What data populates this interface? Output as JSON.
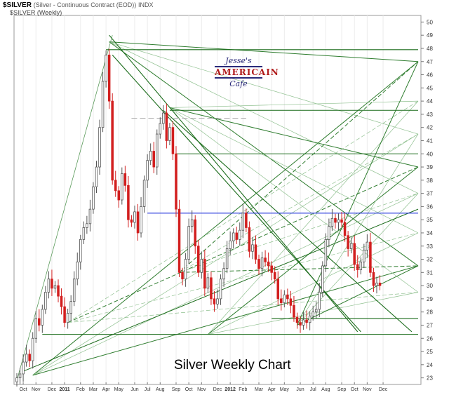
{
  "header": {
    "symbol": "$SILVER",
    "description": "(Silver - Continuous Contract (EOD))",
    "exchange": "INDX",
    "series_label": "$SILVER (Weekly)"
  },
  "logo": {
    "line1": "Jesse's",
    "line2": "AMERICAIN",
    "line3": "Cafe"
  },
  "chart_data": {
    "type": "candlestick",
    "title": "Silver Weekly Chart",
    "ylim": [
      22.5,
      50.5
    ],
    "y_ticks": [
      23,
      24,
      25,
      26,
      27,
      28,
      29,
      30,
      31,
      32,
      33,
      34,
      35,
      36,
      37,
      38,
      39,
      40,
      41,
      42,
      43,
      44,
      45,
      46,
      47,
      48,
      49,
      50
    ],
    "x_month_labels": [
      {
        "week": 2,
        "label": "Oct",
        "bold": false
      },
      {
        "week": 6,
        "label": "Nov",
        "bold": false
      },
      {
        "week": 11,
        "label": "Dec",
        "bold": false
      },
      {
        "week": 15,
        "label": "2011",
        "bold": true
      },
      {
        "week": 20,
        "label": "Feb",
        "bold": false
      },
      {
        "week": 24,
        "label": "Mar",
        "bold": false
      },
      {
        "week": 28,
        "label": "Apr",
        "bold": false
      },
      {
        "week": 32,
        "label": "May",
        "bold": false
      },
      {
        "week": 37,
        "label": "Jun",
        "bold": false
      },
      {
        "week": 41,
        "label": "Jul",
        "bold": false
      },
      {
        "week": 45,
        "label": "Aug",
        "bold": false
      },
      {
        "week": 50,
        "label": "Sep",
        "bold": false
      },
      {
        "week": 54,
        "label": "Oct",
        "bold": false
      },
      {
        "week": 58,
        "label": "Nov",
        "bold": false
      },
      {
        "week": 63,
        "label": "Dec",
        "bold": false
      },
      {
        "week": 67,
        "label": "2012",
        "bold": true
      },
      {
        "week": 71,
        "label": "Feb",
        "bold": false
      },
      {
        "week": 76,
        "label": "Mar",
        "bold": false
      },
      {
        "week": 80,
        "label": "Apr",
        "bold": false
      },
      {
        "week": 84,
        "label": "May",
        "bold": false
      },
      {
        "week": 89,
        "label": "Jun",
        "bold": false
      },
      {
        "week": 93,
        "label": "Jul",
        "bold": false
      },
      {
        "week": 97,
        "label": "Aug",
        "bold": false
      },
      {
        "week": 102,
        "label": "Sep",
        "bold": false
      },
      {
        "week": 106,
        "label": "Oct",
        "bold": false
      },
      {
        "week": 110,
        "label": "Nov",
        "bold": false
      },
      {
        "week": 115,
        "label": "Dec",
        "bold": false
      }
    ],
    "closes": [
      23.0,
      23.3,
      24.2,
      24.8,
      24.3,
      26.0,
      27.5,
      27.0,
      28.2,
      29.5,
      30.5,
      29.8,
      30.0,
      29.2,
      28.4,
      27.2,
      27.9,
      28.8,
      30.5,
      31.8,
      33.5,
      34.4,
      34.7,
      35.8,
      37.5,
      39.0,
      42.0,
      45.5,
      47.5,
      44.0,
      38.0,
      37.2,
      36.5,
      38.5,
      37.6,
      35.0,
      34.8,
      35.6,
      34.0,
      36.0,
      38.0,
      39.5,
      40.2,
      39.0,
      41.5,
      42.3,
      43.1,
      41.0,
      42.0,
      40.0,
      35.8,
      31.0,
      30.5,
      32.0,
      34.5,
      35.0,
      33.0,
      31.0,
      32.0,
      29.8,
      30.6,
      29.0,
      28.6,
      29.0,
      30.5,
      31.3,
      32.8,
      33.4,
      34.0,
      33.5,
      34.2,
      35.5,
      34.4,
      32.6,
      33.1,
      32.0,
      31.3,
      32.1,
      31.8,
      31.5,
      31.0,
      30.5,
      29.0,
      28.7,
      29.3,
      29.0,
      28.5,
      27.6,
      27.2,
      27.0,
      27.4,
      27.2,
      27.7,
      28.0,
      28.2,
      29.5,
      31.5,
      33.5,
      34.5,
      35.1,
      34.8,
      35.0,
      34.8,
      33.8,
      32.8,
      33.2,
      31.6,
      31.2,
      31.8,
      32.7,
      33.3,
      31.0,
      30.0,
      30.2,
      30.0
    ],
    "horizontal_lines": [
      {
        "y": 47.9,
        "color": "#1a6b1a",
        "from": 28,
        "to": 126
      },
      {
        "y": 43.3,
        "color": "#1a6b1a",
        "from": 48,
        "to": 126
      },
      {
        "y": 40.0,
        "color": "#1a6b1a",
        "from": 50,
        "to": 126
      },
      {
        "y": 35.5,
        "color": "#2233dd",
        "from": 41,
        "to": 126
      },
      {
        "y": 26.3,
        "color": "#1a6b1a",
        "from": 8,
        "to": 126
      },
      {
        "y": 27.5,
        "color": "#1a6b1a",
        "from": 80,
        "to": 126
      }
    ],
    "grid": false
  }
}
